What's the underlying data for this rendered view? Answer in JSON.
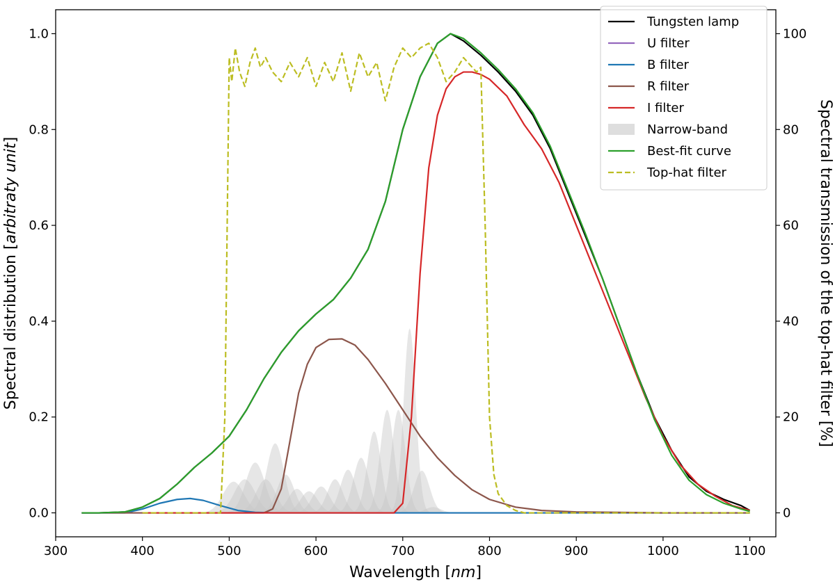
{
  "chart_data": {
    "type": "line",
    "title": "",
    "xlabel_prefix": "Wavelength [",
    "xlabel_unit": "nm",
    "xlabel_suffix": "]",
    "ylabel_left_prefix": "Spectral distribution [",
    "ylabel_left_unit": "arbitraty unit",
    "ylabel_left_suffix": "]",
    "ylabel_right": "Spectral transmission of the top-hat filter [%]",
    "xlim": [
      300,
      1130
    ],
    "ylim_left": [
      -0.05,
      1.05
    ],
    "ylim_right": [
      -5,
      105
    ],
    "x_ticks": [
      300,
      400,
      500,
      600,
      700,
      800,
      900,
      1000,
      1100
    ],
    "y_ticks_left": [
      "0.0",
      "0.2",
      "0.4",
      "0.6",
      "0.8",
      "1.0"
    ],
    "y_ticks_right": [
      "0",
      "20",
      "40",
      "60",
      "80",
      "100"
    ],
    "legend_position": "top-right",
    "series": [
      {
        "name": "Tungsten lamp",
        "color": "#000000",
        "style": "solid",
        "axis": "left",
        "x": [
          330,
          350,
          380,
          400,
          420,
          440,
          460,
          480,
          500,
          520,
          540,
          560,
          580,
          600,
          620,
          640,
          660,
          680,
          700,
          720,
          740,
          755,
          770,
          790,
          810,
          830,
          850,
          870,
          890,
          910,
          930,
          950,
          970,
          990,
          1010,
          1030,
          1050,
          1070,
          1090,
          1100
        ],
        "y": [
          0,
          0.0,
          0.002,
          0.012,
          0.03,
          0.06,
          0.095,
          0.125,
          0.16,
          0.215,
          0.28,
          0.335,
          0.38,
          0.415,
          0.445,
          0.49,
          0.55,
          0.65,
          0.8,
          0.91,
          0.98,
          1.0,
          0.985,
          0.955,
          0.92,
          0.88,
          0.83,
          0.76,
          0.67,
          0.58,
          0.49,
          0.39,
          0.29,
          0.2,
          0.13,
          0.075,
          0.045,
          0.028,
          0.015,
          0.005
        ]
      },
      {
        "name": "U filter",
        "color": "#9467bd",
        "style": "solid",
        "axis": "left",
        "x": [
          330,
          1100
        ],
        "y": [
          0,
          0
        ]
      },
      {
        "name": "B filter",
        "color": "#1f77b4",
        "style": "solid",
        "axis": "left",
        "x": [
          330,
          380,
          400,
          420,
          440,
          455,
          470,
          490,
          510,
          530,
          550,
          1100
        ],
        "y": [
          0,
          0.0,
          0.008,
          0.02,
          0.028,
          0.03,
          0.026,
          0.015,
          0.005,
          0.001,
          0,
          0
        ]
      },
      {
        "name": "R filter",
        "color": "#8c564b",
        "style": "solid",
        "axis": "left",
        "x": [
          330,
          540,
          550,
          560,
          570,
          580,
          590,
          600,
          615,
          630,
          645,
          660,
          680,
          700,
          720,
          740,
          760,
          780,
          800,
          830,
          860,
          900,
          1000,
          1100
        ],
        "y": [
          0,
          0,
          0.008,
          0.05,
          0.15,
          0.25,
          0.31,
          0.345,
          0.362,
          0.363,
          0.35,
          0.32,
          0.27,
          0.215,
          0.16,
          0.115,
          0.078,
          0.048,
          0.028,
          0.012,
          0.005,
          0.002,
          0,
          0
        ]
      },
      {
        "name": "I filter",
        "color": "#d62728",
        "style": "solid",
        "axis": "left",
        "x": [
          400,
          690,
          700,
          710,
          720,
          730,
          740,
          750,
          760,
          770,
          780,
          790,
          800,
          820,
          840,
          860,
          880,
          900,
          920,
          940,
          960,
          980,
          1000,
          1020,
          1040,
          1060,
          1080,
          1100
        ],
        "y": [
          0,
          0,
          0.02,
          0.2,
          0.5,
          0.72,
          0.83,
          0.885,
          0.91,
          0.92,
          0.92,
          0.915,
          0.905,
          0.87,
          0.81,
          0.76,
          0.69,
          0.6,
          0.51,
          0.42,
          0.33,
          0.24,
          0.16,
          0.1,
          0.06,
          0.035,
          0.015,
          0.005
        ]
      },
      {
        "name": "Best-fit curve",
        "color": "#2ca02c",
        "style": "solid",
        "axis": "left",
        "x": [
          330,
          350,
          380,
          400,
          420,
          440,
          460,
          480,
          500,
          520,
          540,
          560,
          580,
          600,
          620,
          640,
          660,
          680,
          700,
          720,
          740,
          755,
          770,
          790,
          810,
          830,
          850,
          870,
          890,
          910,
          930,
          950,
          970,
          990,
          1010,
          1030,
          1050,
          1070,
          1090,
          1100
        ],
        "y": [
          0,
          0.0,
          0.002,
          0.012,
          0.03,
          0.06,
          0.095,
          0.125,
          0.16,
          0.215,
          0.28,
          0.335,
          0.38,
          0.415,
          0.445,
          0.49,
          0.55,
          0.65,
          0.8,
          0.91,
          0.98,
          1.0,
          0.99,
          0.96,
          0.925,
          0.885,
          0.835,
          0.765,
          0.675,
          0.585,
          0.49,
          0.39,
          0.29,
          0.195,
          0.12,
          0.068,
          0.038,
          0.02,
          0.008,
          0.003
        ]
      },
      {
        "name": "Top-hat filter",
        "color": "#bcbd22",
        "style": "dashed",
        "axis": "right",
        "x": [
          400,
          490,
          495,
          500,
          503,
          507,
          512,
          518,
          524,
          530,
          536,
          542,
          550,
          560,
          570,
          580,
          590,
          600,
          610,
          620,
          630,
          640,
          650,
          660,
          670,
          680,
          690,
          700,
          710,
          720,
          730,
          740,
          750,
          760,
          770,
          780,
          785,
          790,
          795,
          800,
          805,
          810,
          820,
          830,
          840,
          1100
        ],
        "y": [
          0,
          0,
          20,
          95,
          90,
          97,
          92,
          89,
          94,
          97,
          93,
          95,
          92,
          90,
          94,
          91,
          95,
          89,
          94,
          90,
          96,
          88,
          96,
          91,
          94,
          86,
          93,
          97,
          95,
          97,
          98,
          95,
          90,
          92,
          95,
          93,
          92,
          93,
          60,
          20,
          8,
          4,
          1.5,
          0.5,
          0,
          0
        ]
      }
    ],
    "narrow_band": {
      "name": "Narrow-band",
      "color": "#c8c8c8",
      "peaks": [
        {
          "center": 505,
          "height": 0.065,
          "width": 12
        },
        {
          "center": 518,
          "height": 0.07,
          "width": 12
        },
        {
          "center": 530,
          "height": 0.105,
          "width": 11
        },
        {
          "center": 542,
          "height": 0.07,
          "width": 11
        },
        {
          "center": 553,
          "height": 0.145,
          "width": 10
        },
        {
          "center": 565,
          "height": 0.08,
          "width": 10
        },
        {
          "center": 578,
          "height": 0.05,
          "width": 10
        },
        {
          "center": 592,
          "height": 0.045,
          "width": 10
        },
        {
          "center": 606,
          "height": 0.055,
          "width": 10
        },
        {
          "center": 622,
          "height": 0.07,
          "width": 9
        },
        {
          "center": 637,
          "height": 0.09,
          "width": 9
        },
        {
          "center": 652,
          "height": 0.115,
          "width": 9
        },
        {
          "center": 667,
          "height": 0.17,
          "width": 8
        },
        {
          "center": 682,
          "height": 0.215,
          "width": 8
        },
        {
          "center": 695,
          "height": 0.215,
          "width": 8
        },
        {
          "center": 708,
          "height": 0.385,
          "width": 7
        },
        {
          "center": 722,
          "height": 0.088,
          "width": 9
        },
        {
          "center": 735,
          "height": 0.012,
          "width": 9
        }
      ]
    }
  }
}
